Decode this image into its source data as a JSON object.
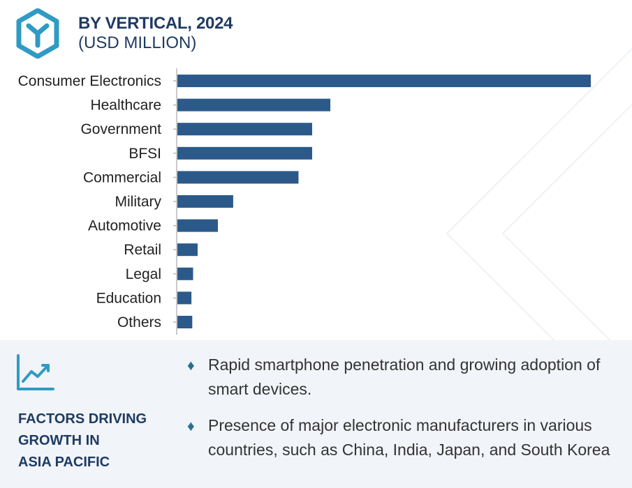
{
  "header": {
    "title": "BY VERTICAL, 2024",
    "subtitle": "(USD MILLION)"
  },
  "chart_data": {
    "type": "bar",
    "orientation": "horizontal",
    "title": "BY VERTICAL, 2024",
    "subtitle": "(USD MILLION)",
    "categories": [
      "Consumer Electronics",
      "Healthcare",
      "Government",
      "BFSI",
      "Commercial",
      "Military",
      "Automotive",
      "Retail",
      "Legal",
      "Education",
      "Others"
    ],
    "values": [
      100,
      37,
      32.6,
      32.6,
      29.3,
      13.5,
      9.8,
      4.9,
      3.8,
      3.4,
      3.6
    ],
    "xlim": [
      0,
      100
    ],
    "grid": false,
    "legend": "none",
    "bar_color": "#2b5a8a"
  },
  "factors": {
    "heading_lines": [
      "FACTORS DRIVING",
      "GROWTH IN",
      "ASIA PACIFIC"
    ],
    "bullets": [
      "Rapid smartphone penetration and growing adoption of smart devices.",
      "Presence of major electronic manufacturers in various countries, such as China, India, Japan, and South Korea"
    ]
  },
  "colors": {
    "accent": "#2f9bc4",
    "heading": "#1f3b63",
    "bullet": "#2b6f8f",
    "panel_bg": "#f1f4f8"
  },
  "icons": {
    "logo": "cube-logo-icon",
    "trend": "line-chart-trend-icon",
    "bullet": "diamond-bullet-icon"
  }
}
